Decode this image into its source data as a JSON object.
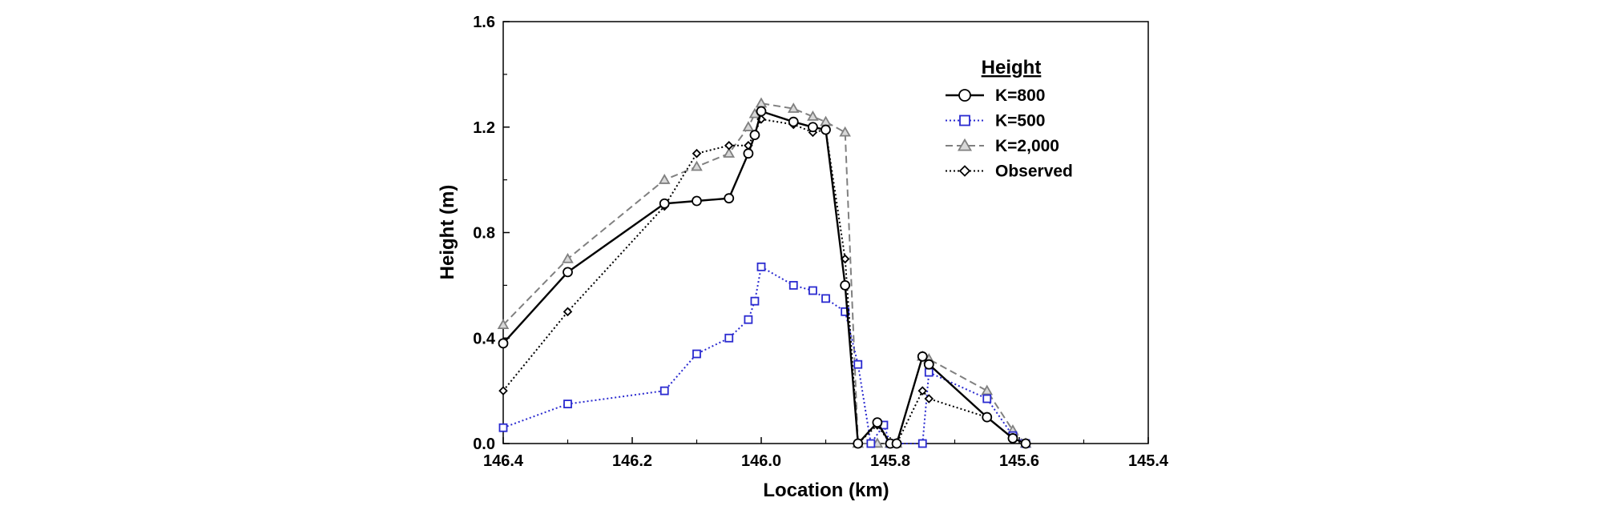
{
  "chart_data": {
    "type": "line",
    "title": "",
    "xlabel": "Location (km)",
    "ylabel": "Height (m)",
    "xlim": [
      146.4,
      145.4
    ],
    "ylim": [
      0.0,
      1.6
    ],
    "x_reversed": true,
    "xticks": [
      146.4,
      146.2,
      146.0,
      145.8,
      145.6,
      145.4
    ],
    "xtick_labels": [
      "146.4",
      "146.2",
      "146.0",
      "145.8",
      "145.6",
      "145.4"
    ],
    "yticks": [
      0.0,
      0.4,
      0.8,
      1.2,
      1.6
    ],
    "ytick_labels": [
      "0.0",
      "0.4",
      "0.8",
      "1.2",
      "1.6"
    ],
    "grid": false,
    "legend_title": "Height",
    "legend_position": "top-right",
    "series": [
      {
        "name": "K=800",
        "marker": "circle",
        "line_style": "solid",
        "color": "#000000",
        "points": [
          [
            146.4,
            0.38
          ],
          [
            146.3,
            0.65
          ],
          [
            146.15,
            0.91
          ],
          [
            146.1,
            0.92
          ],
          [
            146.05,
            0.93
          ],
          [
            146.02,
            1.1
          ],
          [
            146.01,
            1.17
          ],
          [
            146.0,
            1.26
          ],
          [
            145.95,
            1.22
          ],
          [
            145.92,
            1.2
          ],
          [
            145.9,
            1.19
          ],
          [
            145.87,
            0.6
          ],
          [
            145.85,
            0.0
          ],
          [
            145.82,
            0.08
          ],
          [
            145.8,
            0.0
          ],
          [
            145.79,
            0.0
          ],
          [
            145.75,
            0.33
          ],
          [
            145.74,
            0.3
          ],
          [
            145.65,
            0.1
          ],
          [
            145.61,
            0.02
          ],
          [
            145.59,
            0.0
          ]
        ]
      },
      {
        "name": "K=500",
        "marker": "square",
        "line_style": "dotted",
        "color": "#2a2ad0",
        "points": [
          [
            146.4,
            0.06
          ],
          [
            146.3,
            0.15
          ],
          [
            146.15,
            0.2
          ],
          [
            146.1,
            0.34
          ],
          [
            146.05,
            0.4
          ],
          [
            146.02,
            0.47
          ],
          [
            146.01,
            0.54
          ],
          [
            146.0,
            0.67
          ],
          [
            145.95,
            0.6
          ],
          [
            145.92,
            0.58
          ],
          [
            145.9,
            0.55
          ],
          [
            145.87,
            0.5
          ],
          [
            145.85,
            0.3
          ],
          [
            145.83,
            0.0
          ],
          [
            145.81,
            0.07
          ],
          [
            145.8,
            0.0
          ],
          [
            145.75,
            0.0
          ],
          [
            145.74,
            0.27
          ],
          [
            145.65,
            0.17
          ],
          [
            145.61,
            0.03
          ],
          [
            145.59,
            0.0
          ]
        ]
      },
      {
        "name": "K=2,000",
        "marker": "triangle",
        "line_style": "dashed",
        "color": "#808080",
        "points": [
          [
            146.4,
            0.45
          ],
          [
            146.3,
            0.7
          ],
          [
            146.15,
            1.0
          ],
          [
            146.1,
            1.05
          ],
          [
            146.05,
            1.1
          ],
          [
            146.02,
            1.2
          ],
          [
            146.01,
            1.25
          ],
          [
            146.0,
            1.29
          ],
          [
            145.95,
            1.27
          ],
          [
            145.92,
            1.24
          ],
          [
            145.9,
            1.22
          ],
          [
            145.87,
            1.18
          ],
          [
            145.85,
            0.0
          ],
          [
            145.82,
            0.0
          ],
          [
            145.8,
            0.0
          ],
          [
            145.79,
            0.0
          ],
          [
            145.75,
            0.33
          ],
          [
            145.74,
            0.32
          ],
          [
            145.65,
            0.2
          ],
          [
            145.61,
            0.05
          ],
          [
            145.59,
            0.0
          ]
        ]
      },
      {
        "name": "Observed",
        "marker": "diamond",
        "line_style": "dotted",
        "color": "#000000",
        "points": [
          [
            146.4,
            0.2
          ],
          [
            146.3,
            0.5
          ],
          [
            146.15,
            0.9
          ],
          [
            146.1,
            1.1
          ],
          [
            146.05,
            1.13
          ],
          [
            146.02,
            1.13
          ],
          [
            146.0,
            1.23
          ],
          [
            145.95,
            1.21
          ],
          [
            145.92,
            1.18
          ],
          [
            145.9,
            1.19
          ],
          [
            145.87,
            0.7
          ],
          [
            145.85,
            0.0
          ],
          [
            145.82,
            0.07
          ],
          [
            145.8,
            0.0
          ],
          [
            145.79,
            0.0
          ],
          [
            145.75,
            0.2
          ],
          [
            145.74,
            0.17
          ],
          [
            145.65,
            0.1
          ],
          [
            145.61,
            0.02
          ],
          [
            145.59,
            0.0
          ]
        ]
      }
    ]
  }
}
